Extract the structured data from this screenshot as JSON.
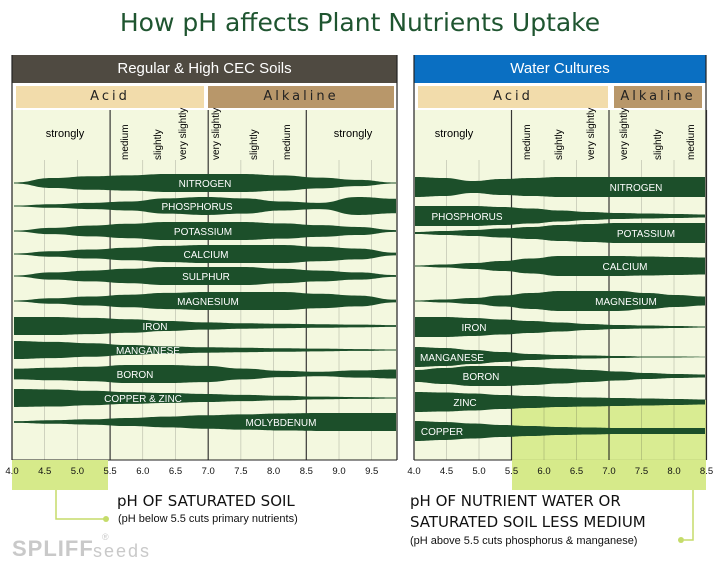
{
  "title": "How pH affects Plant Nutrients Uptake",
  "colors": {
    "band": "#1c4f2a",
    "panel_bg": "#f3f8df",
    "header_soil": "#4f4a41",
    "header_water": "#0a6fc2",
    "acid": "#f2dcab",
    "alkaline": "#b8976a",
    "lime": "#d6ea8a"
  },
  "soil_panel": {
    "header": "Regular & High CEC Soils",
    "acid_label": "Acid",
    "alkaline_label": "Alkaline",
    "intensity": {
      "left": "strongly",
      "medium": "medium",
      "slightly": "slightly",
      "very_slightly": "very slightly",
      "right": "strongly"
    },
    "ticks": [
      "4.0",
      "4.5",
      "5.0",
      "5.5",
      "6.0",
      "6.5",
      "7.0",
      "7.5",
      "8.0",
      "8.5",
      "9.0",
      "9.5"
    ],
    "nutrients": [
      "NITROGEN",
      "PHOSPHORUS",
      "POTASSIUM",
      "CALCIUM",
      "SULPHUR",
      "MAGNESIUM",
      "IRON",
      "MANGANESE",
      "BORON",
      "COPPER & ZINC",
      "MOLYBDENUM"
    ],
    "caption": "pH OF SATURATED SOIL",
    "note": "(pH below 5.5 cuts primary nutrients)"
  },
  "water_panel": {
    "header": "Water Cultures",
    "acid_label": "Acid",
    "alkaline_label": "Alkaline",
    "intensity": {
      "left": "strongly",
      "medium": "medium",
      "slightly": "slightly",
      "very_slightly": "very slightly"
    },
    "ticks": [
      "4.0",
      "4.5",
      "5.0",
      "5.5",
      "6.0",
      "6.5",
      "7.0",
      "7.5",
      "8.0",
      "8.5"
    ],
    "nutrients": [
      "NITROGEN",
      "PHOSPHORUS",
      "POTASSIUM",
      "CALCIUM",
      "MAGNESIUM",
      "IRON",
      "MANGANESE",
      "BORON",
      "ZINC",
      "COPPER"
    ],
    "caption_line1": "pH OF NUTRIENT WATER OR",
    "caption_line2": "SATURATED SOIL LESS MEDIUM",
    "note": "(pH above 5.5 cuts phosphorus & manganese)"
  },
  "logo": {
    "brand": "SPLIFF",
    "reg": "®",
    "suffix": "seeds"
  }
}
